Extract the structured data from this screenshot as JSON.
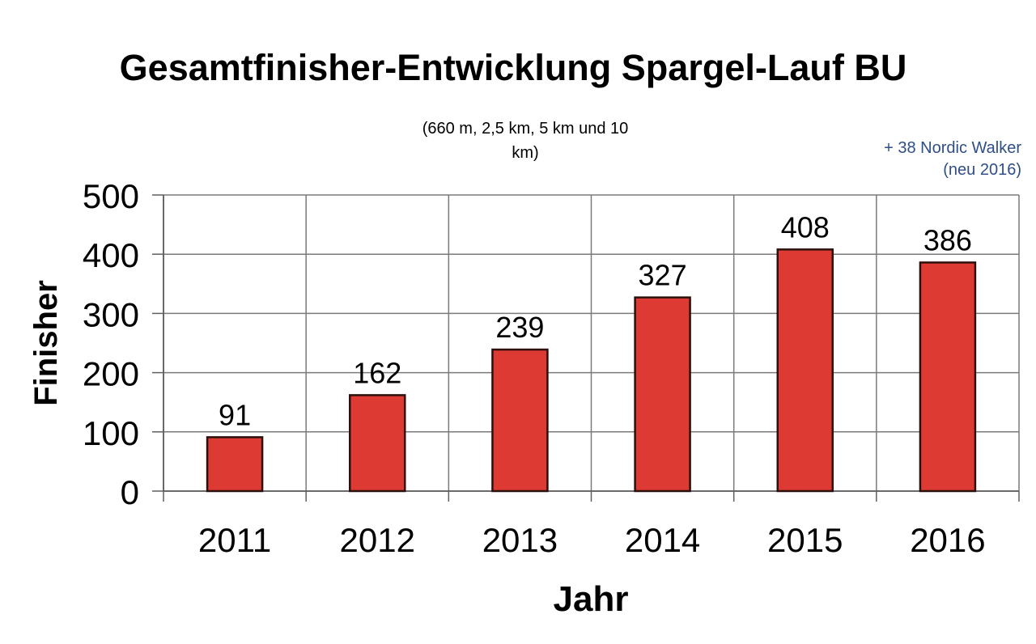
{
  "page": {
    "background": "#ffffff"
  },
  "header": {
    "title": "Gesamtfinisher-Entwicklung Spargel-Lauf BU",
    "subtitle_lines": [
      "(660 m, 2,5 km, 5 km und 10",
      "km)"
    ],
    "annotation_lines": [
      "+ 38 Nordic Walker",
      "(neu 2016)"
    ],
    "annotation_color": "#2F4E87"
  },
  "chart_data": {
    "type": "bar",
    "title": "Gesamtfinisher-Entwicklung Spargel-Lauf BU",
    "subtitle": "(660 m, 2,5 km, 5 km und 10 km)",
    "categories": [
      "2011",
      "2012",
      "2013",
      "2014",
      "2015",
      "2016"
    ],
    "values": [
      91,
      162,
      239,
      327,
      408,
      386
    ],
    "data_labels": [
      91,
      162,
      239,
      327,
      408,
      386
    ],
    "xlabel": "Jahr",
    "ylabel": "Finisher",
    "ylim": [
      0,
      500
    ],
    "yticks": [
      0,
      100,
      200,
      300,
      400,
      500
    ],
    "grid": "horizontal-and-vertical",
    "legend": "none",
    "bar_color": "#DC3A32",
    "bar_border_color": "#2B100C",
    "grid_color": "#7A7A7A",
    "axis_color": "#5F5F5F",
    "annotations": [
      {
        "text": "+ 38 Nordic Walker (neu 2016)",
        "position": "top-right",
        "color": "#2F4E87"
      }
    ]
  }
}
